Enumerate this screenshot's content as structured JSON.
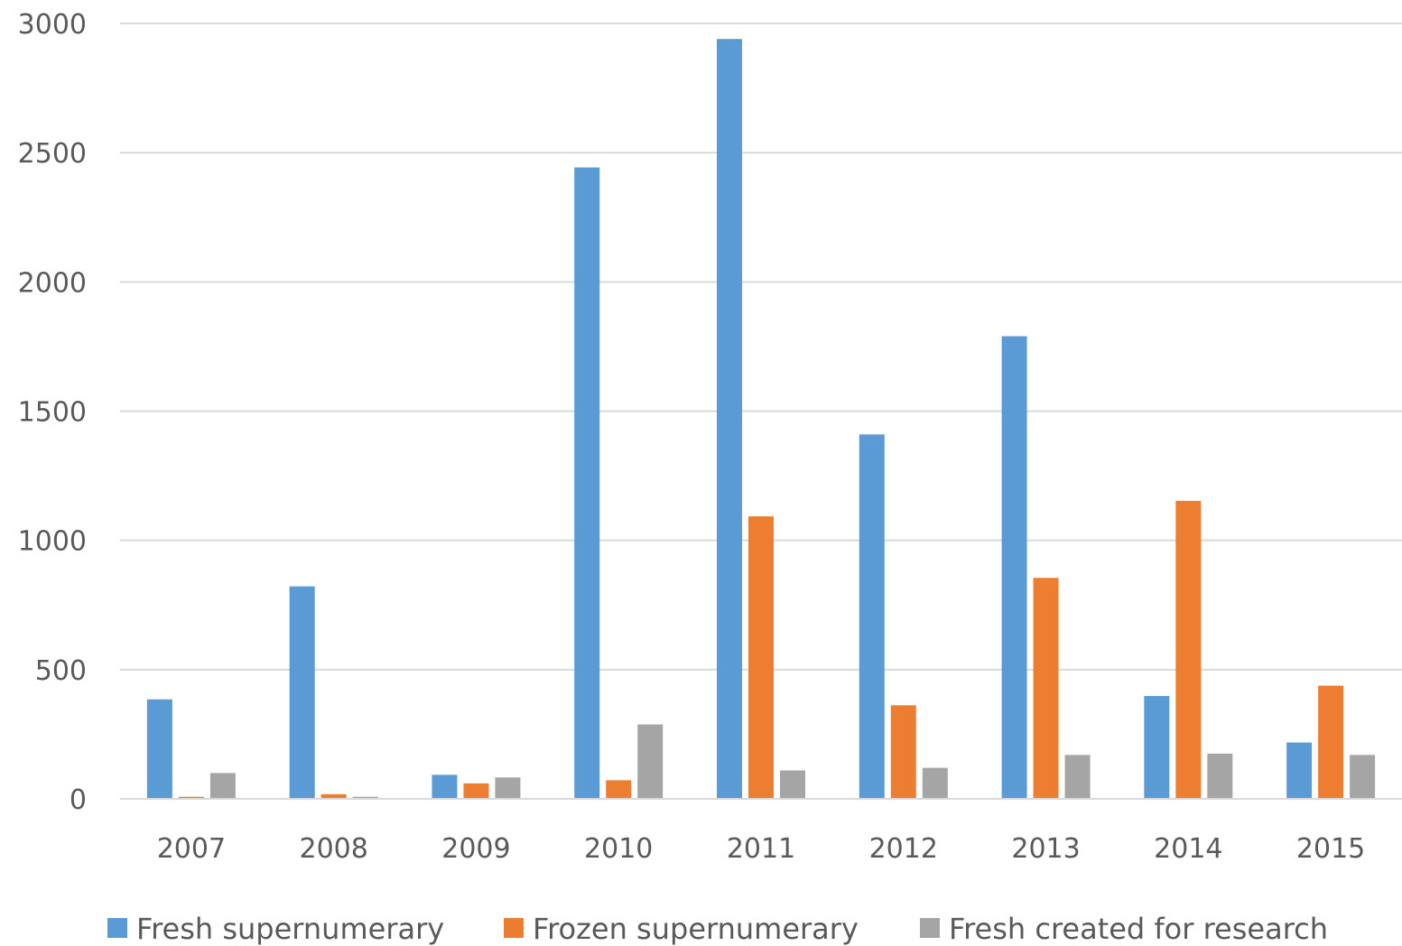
{
  "chart_data": {
    "type": "bar",
    "title": "",
    "xlabel": "",
    "ylabel": "",
    "categories": [
      "2007",
      "2008",
      "2009",
      "2010",
      "2011",
      "2012",
      "2013",
      "2014",
      "2015"
    ],
    "series": [
      {
        "name": "Fresh supernumerary",
        "color": "#5b9bd5",
        "values": [
          385,
          822,
          93,
          2443,
          2940,
          1410,
          1790,
          398,
          218
        ]
      },
      {
        "name": "Frozen supernumerary",
        "color": "#ed7d31",
        "values": [
          8,
          18,
          60,
          72,
          1093,
          362,
          855,
          1153,
          438
        ]
      },
      {
        "name": "Fresh created for research",
        "color": "#a5a5a5",
        "values": [
          100,
          8,
          83,
          288,
          110,
          120,
          170,
          175,
          170
        ]
      }
    ],
    "ylim": [
      0,
      3000
    ],
    "yticks": [
      "0",
      "500",
      "1000",
      "1500",
      "2000",
      "2500",
      "3000"
    ],
    "grid": true,
    "gridline_color": "#d9d9d9",
    "legend_position": "bottom"
  }
}
